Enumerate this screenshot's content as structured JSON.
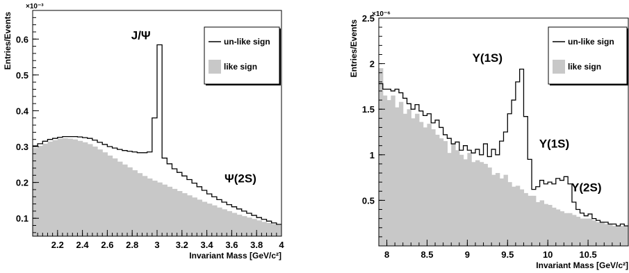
{
  "chart_data": [
    {
      "type": "histogram",
      "xlabel": "Invariant Mass [GeV/c²]",
      "ylabel": "Entries/Events",
      "y_exponent": "×10⁻³",
      "xlim": [
        2.0,
        4.0
      ],
      "ylim": [
        0.05,
        0.68
      ],
      "xticks": [
        "2.2",
        "2.4",
        "2.6",
        "2.8",
        "3",
        "3.2",
        "3.4",
        "3.6",
        "3.8",
        "4"
      ],
      "xtick_values": [
        2.2,
        2.4,
        2.6,
        2.8,
        3.0,
        3.2,
        3.4,
        3.6,
        3.8,
        4.0
      ],
      "yticks": [
        "0.1",
        "0.2",
        "0.3",
        "0.4",
        "0.5",
        "0.6"
      ],
      "ytick_values": [
        0.1,
        0.2,
        0.3,
        0.4,
        0.5,
        0.6
      ],
      "bin_width": 0.04,
      "legend": {
        "position": "top-right",
        "items": [
          "un-like sign",
          "like sign"
        ]
      },
      "series": [
        {
          "name": "un-like sign",
          "style": "step-line",
          "color": "#000000",
          "values": [
            0.302,
            0.308,
            0.315,
            0.32,
            0.323,
            0.326,
            0.328,
            0.328,
            0.328,
            0.327,
            0.325,
            0.323,
            0.318,
            0.312,
            0.306,
            0.3,
            0.296,
            0.292,
            0.289,
            0.287,
            0.285,
            0.283,
            0.283,
            0.285,
            0.38,
            0.584,
            0.268,
            0.252,
            0.238,
            0.228,
            0.218,
            0.208,
            0.198,
            0.188,
            0.178,
            0.168,
            0.16,
            0.152,
            0.145,
            0.138,
            0.132,
            0.126,
            0.12,
            0.114,
            0.108,
            0.102,
            0.097,
            0.092,
            0.087,
            0.083
          ]
        },
        {
          "name": "like sign",
          "style": "filled",
          "color": "#c8c8c8",
          "values": [
            0.296,
            0.302,
            0.308,
            0.314,
            0.318,
            0.322,
            0.323,
            0.322,
            0.32,
            0.316,
            0.312,
            0.307,
            0.3,
            0.292,
            0.284,
            0.275,
            0.267,
            0.258,
            0.25,
            0.242,
            0.234,
            0.226,
            0.218,
            0.211,
            0.205,
            0.2,
            0.194,
            0.188,
            0.182,
            0.176,
            0.17,
            0.164,
            0.158,
            0.152,
            0.146,
            0.141,
            0.136,
            0.13,
            0.125,
            0.12,
            0.115,
            0.11,
            0.106,
            0.102,
            0.098,
            0.094,
            0.09,
            0.087,
            0.084,
            0.081
          ]
        }
      ],
      "annotations": [
        {
          "text": "J/Ψ",
          "x": 2.87,
          "y": 0.6
        },
        {
          "text": "Ψ(2S)",
          "x": 3.67,
          "y": 0.2
        }
      ]
    },
    {
      "type": "histogram",
      "xlabel": "Invariant Mass [GeV/c²]",
      "ylabel": "Entries/Events",
      "y_exponent": "×10⁻⁶",
      "xlim": [
        7.9,
        11.0
      ],
      "ylim": [
        0.0,
        2.5
      ],
      "xticks": [
        "8",
        "8.5",
        "9",
        "9.5",
        "10",
        "10.5"
      ],
      "xtick_values": [
        8.0,
        8.5,
        9.0,
        9.5,
        10.0,
        10.5
      ],
      "yticks": [
        "0.5",
        "1",
        "1.5",
        "2",
        "2.5"
      ],
      "ytick_values": [
        0.5,
        1.0,
        1.5,
        2.0,
        2.5
      ],
      "bin_width": 0.05,
      "legend": {
        "position": "top-right",
        "items": [
          "un-like sign",
          "like sign"
        ]
      },
      "series": [
        {
          "name": "un-like sign",
          "style": "step-line",
          "color": "#000000",
          "values": [
            1.78,
            1.72,
            1.72,
            1.7,
            1.72,
            1.68,
            1.62,
            1.56,
            1.5,
            1.55,
            1.48,
            1.43,
            1.45,
            1.35,
            1.38,
            1.3,
            1.22,
            1.18,
            1.12,
            1.14,
            1.05,
            1.1,
            1.05,
            1.02,
            1.06,
            1.0,
            1.12,
            0.98,
            1.06,
            1.0,
            1.15,
            1.25,
            1.45,
            1.6,
            1.8,
            1.94,
            1.42,
            0.95,
            0.62,
            0.65,
            0.72,
            0.68,
            0.7,
            0.68,
            0.74,
            0.72,
            0.76,
            0.68,
            0.48,
            0.4,
            0.36,
            0.33,
            0.35,
            0.3,
            0.28,
            0.26,
            0.26,
            0.24,
            0.24,
            0.22,
            0.24,
            0.22
          ]
        },
        {
          "name": "like sign",
          "style": "filled",
          "color": "#c8c8c8",
          "values": [
            1.95,
            1.65,
            1.6,
            1.65,
            1.52,
            1.58,
            1.45,
            1.5,
            1.4,
            1.45,
            1.36,
            1.3,
            1.34,
            1.28,
            1.22,
            1.18,
            1.15,
            1.02,
            1.12,
            1.05,
            1.0,
            0.95,
            1.02,
            0.92,
            0.94,
            0.92,
            0.9,
            0.86,
            0.78,
            0.8,
            0.74,
            0.78,
            0.7,
            0.65,
            0.66,
            0.62,
            0.58,
            0.55,
            0.55,
            0.48,
            0.5,
            0.46,
            0.45,
            0.42,
            0.4,
            0.38,
            0.36,
            0.36,
            0.34,
            0.32,
            0.3,
            0.3,
            0.3,
            0.28,
            0.26,
            0.26,
            0.24,
            0.24,
            0.22,
            0.22,
            0.22,
            0.22
          ]
        }
      ],
      "annotations": [
        {
          "text": "Υ(1S)",
          "x": 9.25,
          "y": 2.02
        },
        {
          "text": "Υ(1S)",
          "x": 10.08,
          "y": 1.08
        },
        {
          "text": "Υ(2S)",
          "x": 10.48,
          "y": 0.6
        }
      ]
    }
  ]
}
